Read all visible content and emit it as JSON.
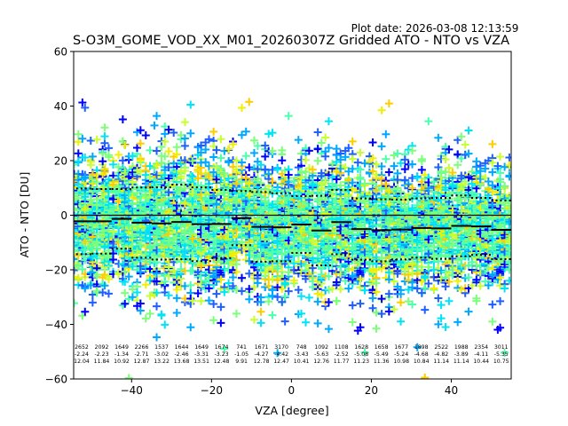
{
  "plot_date": "Plot date: 2026-03-08 12:13:59",
  "chart_data": {
    "type": "scatter",
    "title": "S-O3M_GOME_VOD_XX_M01_20260307Z Gridded ATO - NTO vs VZA",
    "xlabel": "VZA [degree]",
    "ylabel": "ATO - NTO [DU]",
    "xlim": [
      -54.5,
      55
    ],
    "ylim": [
      -60,
      60
    ],
    "xticks": [
      -40,
      -20,
      0,
      20,
      40
    ],
    "xtick_labels": [
      "−40",
      "−20",
      "0",
      "20",
      "40"
    ],
    "yticks": [
      60,
      40,
      20,
      0,
      -20,
      -40,
      -60
    ],
    "ytick_labels": [
      "60",
      "40",
      "20",
      "0",
      "−20",
      "−40",
      "−60"
    ],
    "grid": false,
    "marker": "+",
    "colormap": [
      "#0000ff",
      "#1f5fff",
      "#00a8ff",
      "#00e4f8",
      "#4dffac",
      "#7dff7a",
      "#c8ff30",
      "#f0f000",
      "#ffcc00"
    ],
    "zero_line_color": "#000000",
    "bin_edges_start": -55,
    "bin_width": 5,
    "bins": {
      "counts": [
        "2652",
        "2092",
        "1649",
        "2266",
        "1537",
        "1644",
        "1649",
        "1674",
        "741",
        "1671",
        "3170",
        "748",
        "1092",
        "1108",
        "1628",
        "1658",
        "1677",
        "1898",
        "2522",
        "1988",
        "2354",
        "3011"
      ],
      "means": [
        "-2.24",
        "-2.23",
        "-1.34",
        "-2.71",
        "-3.02",
        "-2.46",
        "-3.31",
        "-3.23",
        "-1.05",
        "-4.27",
        "-4.42",
        "-3.43",
        "-5.63",
        "-2.52",
        "-5.08",
        "-5.49",
        "-5.24",
        "-4.68",
        "-4.82",
        "-3.89",
        "-4.11",
        "-5.35"
      ],
      "stds": [
        "12.04",
        "11.84",
        "10.92",
        "12.87",
        "13.22",
        "13.68",
        "13.51",
        "12.48",
        "9.91",
        "12.78",
        "12.47",
        "10.41",
        "12.76",
        "11.77",
        "11.23",
        "11.36",
        "10.98",
        "10.84",
        "11.14",
        "11.14",
        "10.44",
        "10.75"
      ]
    }
  }
}
